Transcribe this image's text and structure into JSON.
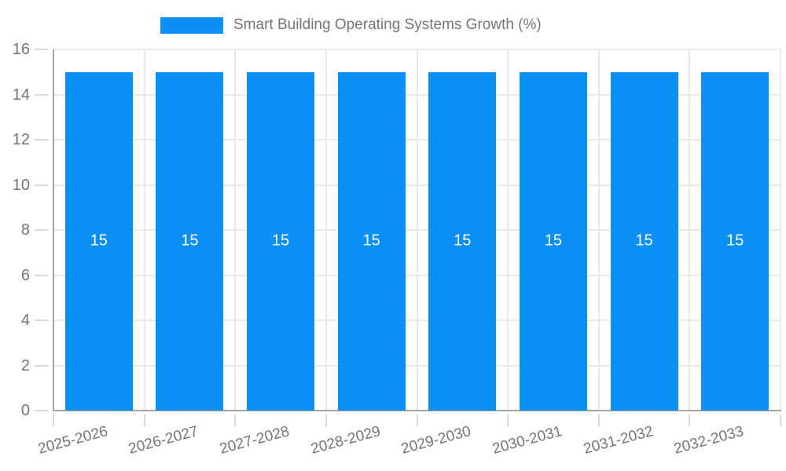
{
  "chart_data": {
    "type": "bar",
    "title": "Smart Building Operating Systems Growth (%)",
    "categories": [
      "2025-2026",
      "2026-2027",
      "2027-2028",
      "2028-2029",
      "2029-2030",
      "2030-2031",
      "2031-2032",
      "2032-2033"
    ],
    "values": [
      15,
      15,
      15,
      15,
      15,
      15,
      15,
      15
    ],
    "series": [
      {
        "name": "Smart Building Operating Systems Growth (%)",
        "values": [
          15,
          15,
          15,
          15,
          15,
          15,
          15,
          15
        ]
      }
    ],
    "xlabel": "",
    "ylabel": "",
    "ylim": [
      0,
      16
    ],
    "yticks": [
      0,
      2,
      4,
      6,
      8,
      10,
      12,
      14,
      16
    ],
    "grid": true,
    "legend_position": "top",
    "bar_value_labels": [
      "15",
      "15",
      "15",
      "15",
      "15",
      "15",
      "15",
      "15"
    ],
    "colors": {
      "bar": "#0a90f5",
      "bar_label": "#ffffff",
      "axis": "#a6a6a6",
      "grid": "#e9e9e9",
      "tick": "#d9d9d9",
      "text": "#757575",
      "background": "#ffffff"
    }
  }
}
